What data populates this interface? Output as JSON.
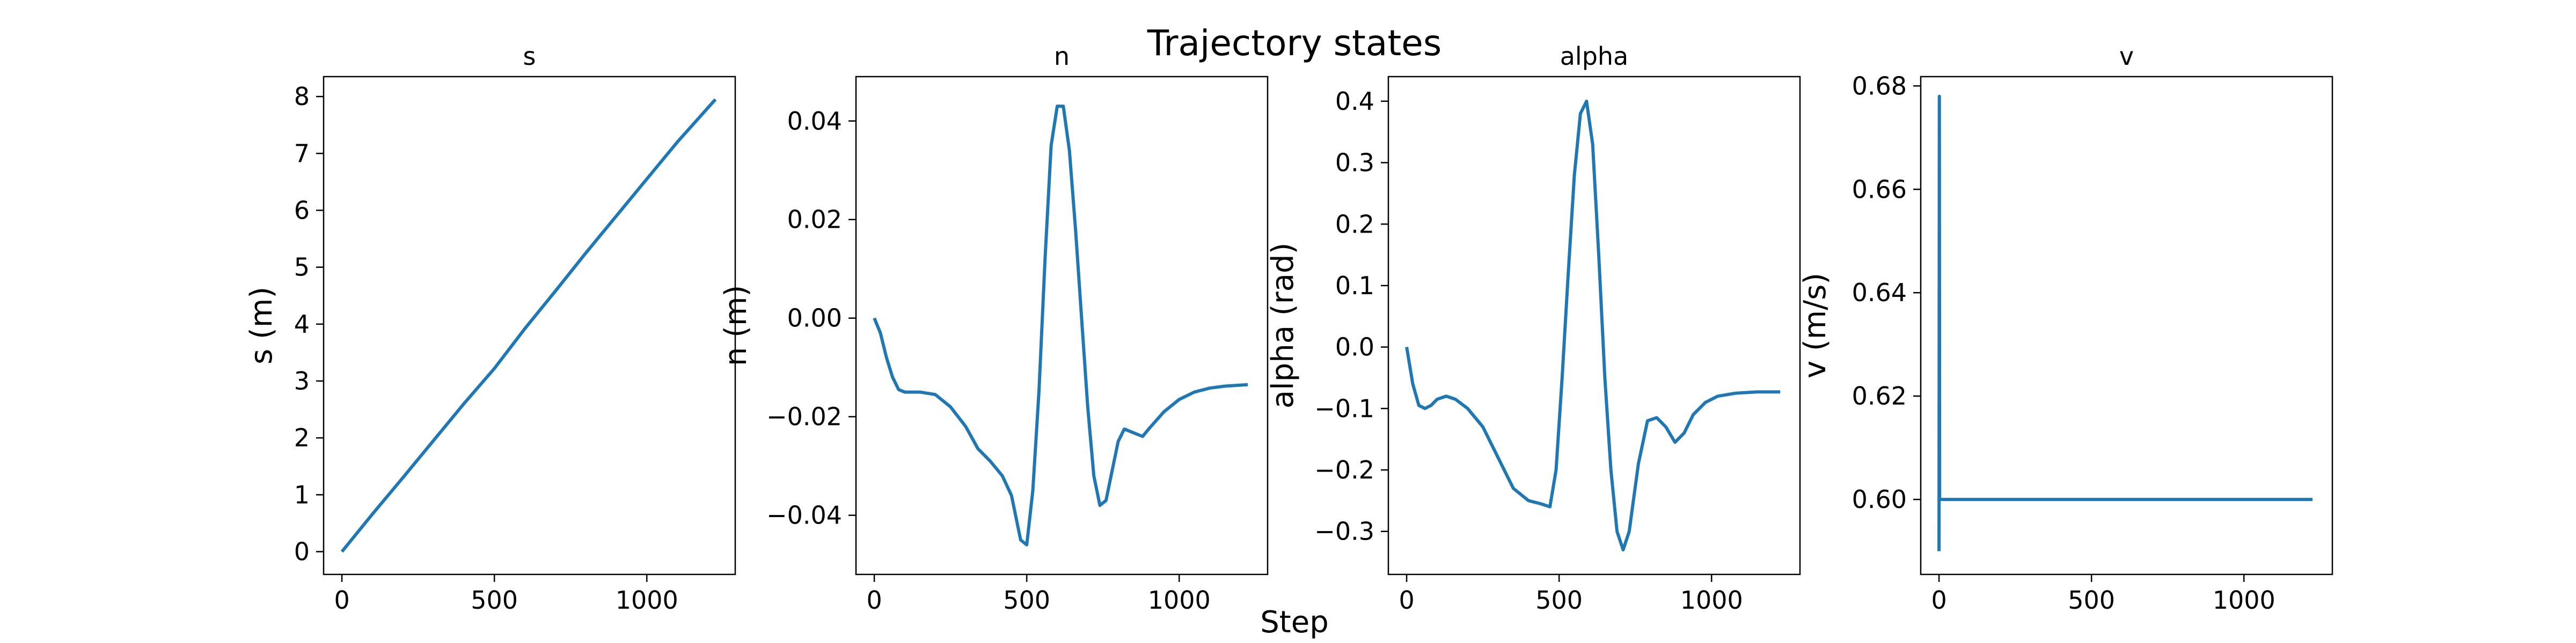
{
  "figure": {
    "title": "Trajectory states",
    "xlabel": "Step"
  },
  "style": {
    "line_color": "#1f77b4",
    "axis_color": "#000000",
    "background": "#ffffff"
  },
  "chart_data": [
    {
      "type": "line",
      "title": "s",
      "xlabel": "",
      "ylabel": "s (m)",
      "xlim": [
        -60,
        1290
      ],
      "ylim": [
        -0.4,
        8.35
      ],
      "xticks": [
        0,
        500,
        1000
      ],
      "yticks": [
        0,
        1,
        2,
        3,
        4,
        5,
        6,
        7,
        8
      ],
      "ytick_labels": [
        "0",
        "1",
        "2",
        "3",
        "4",
        "5",
        "6",
        "7",
        "8"
      ],
      "grid": false,
      "series": [
        {
          "x": [
            0,
            100,
            200,
            300,
            400,
            500,
            600,
            700,
            800,
            900,
            1000,
            1100,
            1225
          ],
          "y": [
            0,
            0.66,
            1.3,
            1.95,
            2.6,
            3.22,
            3.92,
            4.58,
            5.25,
            5.9,
            6.55,
            7.2,
            7.95
          ]
        }
      ]
    },
    {
      "type": "line",
      "title": "n",
      "xlabel": "",
      "ylabel": "n (m)",
      "xlim": [
        -60,
        1290
      ],
      "ylim": [
        -0.052,
        0.049
      ],
      "xticks": [
        0,
        500,
        1000
      ],
      "yticks": [
        0.04,
        0.02,
        0.0,
        -0.02,
        -0.04
      ],
      "ytick_labels": [
        "0.04",
        "0.02",
        "0.00",
        "−0.02",
        "−0.04"
      ],
      "grid": false,
      "series": [
        {
          "x": [
            0,
            20,
            40,
            60,
            80,
            100,
            150,
            200,
            250,
            300,
            340,
            380,
            420,
            450,
            480,
            500,
            520,
            540,
            560,
            580,
            600,
            620,
            640,
            660,
            680,
            700,
            720,
            740,
            760,
            780,
            800,
            820,
            840,
            860,
            880,
            900,
            950,
            1000,
            1050,
            1100,
            1150,
            1225
          ],
          "y": [
            0.0,
            -0.003,
            -0.008,
            -0.012,
            -0.0145,
            -0.015,
            -0.015,
            -0.0155,
            -0.018,
            -0.022,
            -0.0265,
            -0.029,
            -0.032,
            -0.036,
            -0.045,
            -0.046,
            -0.035,
            -0.015,
            0.012,
            0.035,
            0.043,
            0.043,
            0.034,
            0.018,
            0.0,
            -0.018,
            -0.032,
            -0.038,
            -0.037,
            -0.031,
            -0.025,
            -0.0225,
            -0.023,
            -0.0235,
            -0.024,
            -0.0225,
            -0.019,
            -0.0165,
            -0.015,
            -0.0142,
            -0.0138,
            -0.0135
          ]
        }
      ]
    },
    {
      "type": "line",
      "title": "alpha",
      "xlabel": "",
      "ylabel": "alpha (rad)",
      "xlim": [
        -60,
        1290
      ],
      "ylim": [
        -0.37,
        0.44
      ],
      "xticks": [
        0,
        500,
        1000
      ],
      "yticks": [
        0.4,
        0.3,
        0.2,
        0.1,
        0.0,
        -0.1,
        -0.2,
        -0.3
      ],
      "ytick_labels": [
        "0.4",
        "0.3",
        "0.2",
        "0.1",
        "0.0",
        "−0.1",
        "−0.2",
        "−0.3"
      ],
      "grid": false,
      "series": [
        {
          "x": [
            0,
            20,
            40,
            60,
            80,
            100,
            130,
            160,
            200,
            250,
            300,
            350,
            400,
            440,
            470,
            490,
            510,
            530,
            550,
            570,
            590,
            610,
            630,
            650,
            670,
            690,
            710,
            730,
            760,
            790,
            820,
            850,
            880,
            910,
            940,
            980,
            1020,
            1080,
            1150,
            1225
          ],
          "y": [
            0.0,
            -0.06,
            -0.095,
            -0.1,
            -0.095,
            -0.085,
            -0.08,
            -0.085,
            -0.1,
            -0.13,
            -0.18,
            -0.23,
            -0.25,
            -0.255,
            -0.26,
            -0.2,
            -0.05,
            0.12,
            0.28,
            0.38,
            0.4,
            0.33,
            0.15,
            -0.05,
            -0.2,
            -0.3,
            -0.33,
            -0.3,
            -0.19,
            -0.12,
            -0.115,
            -0.13,
            -0.155,
            -0.14,
            -0.11,
            -0.09,
            -0.08,
            -0.075,
            -0.073,
            -0.073
          ]
        }
      ]
    },
    {
      "type": "line",
      "title": "v",
      "xlabel": "",
      "ylabel": "v (m/s)",
      "xlim": [
        -60,
        1290
      ],
      "ylim": [
        0.5855,
        0.6818
      ],
      "xticks": [
        0,
        500,
        1000
      ],
      "yticks": [
        0.68,
        0.66,
        0.64,
        0.62,
        0.6
      ],
      "ytick_labels": [
        "0.68",
        "0.66",
        "0.64",
        "0.62",
        "0.60"
      ],
      "grid": false,
      "series": [
        {
          "x": [
            0,
            1,
            2,
            5,
            1225
          ],
          "y": [
            0.59,
            0.678,
            0.6,
            0.6,
            0.6
          ]
        }
      ]
    }
  ]
}
